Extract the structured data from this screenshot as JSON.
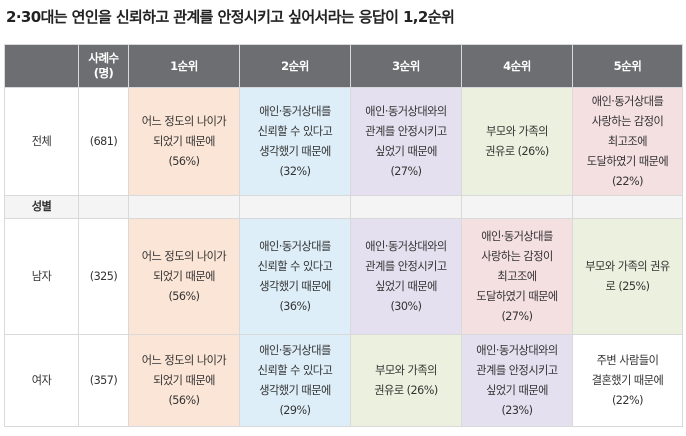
{
  "title": "2·30대는 연인을 신뢰하고 관계를 안정시키고 싶어서라는 응답이 1,2순위",
  "header": {
    "col_group": "",
    "col_n": "사례수\n(명)",
    "ranks": [
      "1순위",
      "2순위",
      "3순위",
      "4순위",
      "5순위"
    ]
  },
  "rows": {
    "total": {
      "label": "전체",
      "n": "(681)",
      "cells": [
        "어느 정도의 나이가\n되었기 때문에\n(56%)",
        "애인·동거상대를\n신뢰할 수 있다고\n생각했기 때문에\n(32%)",
        "애인·동거상대와의\n관계를 안정시키고\n싶었기 때문에\n(27%)",
        "부모와 가족의\n권유로 (26%)",
        "애인·동거상대를\n사랑하는 감정이\n최고조에\n도달하였기 때문에\n(22%)"
      ]
    },
    "section": {
      "label": "성별"
    },
    "male": {
      "label": "남자",
      "n": "(325)",
      "cells": [
        "어느 정도의 나이가\n되었기 때문에\n(56%)",
        "애인·동거상대를\n신뢰할 수 있다고\n생각했기 때문에\n(36%)",
        "애인·동거상대와의\n관계를 안정시키고\n싶었기 때문에\n(30%)",
        "애인·동거상대를\n사랑하는 감정이\n최고조에\n도달하였기 때문에\n(27%)",
        "부모와 가족의 권유\n로 (25%)"
      ]
    },
    "female": {
      "label": "여자",
      "n": "(357)",
      "cells": [
        "어느 정도의 나이가\n되었기 때문에\n(56%)",
        "애인·동거상대를\n신뢰할 수 있다고\n생각했기 때문에\n(29%)",
        "부모와 가족의\n권유로 (26%)",
        "애인·동거상대와의\n관계를 안정시키고\n싶었기 때문에\n(23%)",
        "주변 사람들이\n결혼했기 때문에\n(22%)"
      ]
    }
  },
  "colors": {
    "header_bg": "#6d6e71",
    "pink": "#fbe5d6",
    "blue": "#ddeef8",
    "purple": "#e4e0ef",
    "green": "#ebf1de",
    "rose": "#f4dfe1"
  }
}
